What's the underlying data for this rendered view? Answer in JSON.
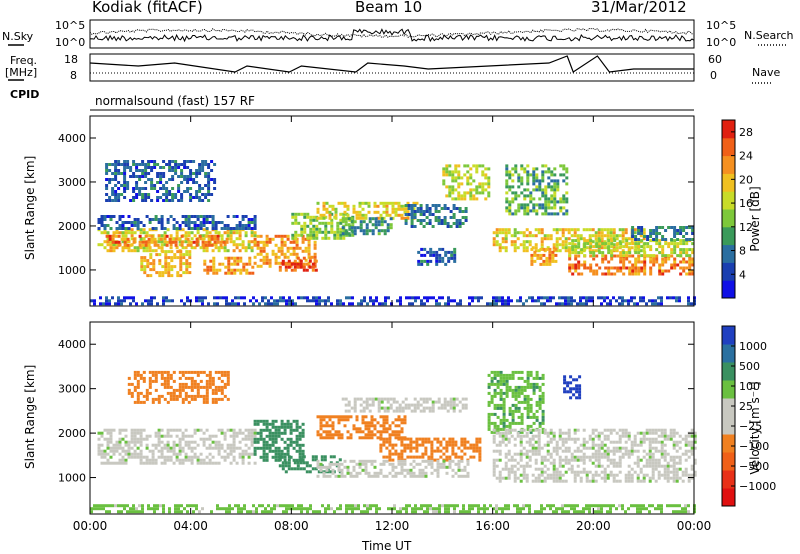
{
  "header": {
    "site": "Kodiak (fitACF)",
    "beam": "Beam 10",
    "date": "31/Mar/2012"
  },
  "summary": {
    "nsky_label": "N.Sky",
    "nsearch_label": "N.Search",
    "noise_ticks": [
      "10^5",
      "10^0"
    ],
    "freq_label": [
      "Freq.",
      "[MHz]"
    ],
    "freq_ticks": [
      "18",
      "8"
    ],
    "nave_label": "Nave",
    "nave_ticks": [
      "60",
      "0"
    ],
    "cpid_label": "CPID",
    "cpid_text": "normalsound (fast) 157 RF"
  },
  "chart_data": [
    {
      "type": "heatmap",
      "title": "",
      "xlabel": "Time UT",
      "ylabel": "Slant Range [km]",
      "xlim": [
        0,
        24
      ],
      "ylim": [
        180,
        4500
      ],
      "x_ticks": [
        "00:00",
        "04:00",
        "08:00",
        "12:00",
        "16:00",
        "20:00",
        "00:00"
      ],
      "y_ticks": [
        "1000",
        "2000",
        "3000",
        "4000"
      ],
      "colorbar": {
        "label": "Power [dB]",
        "ticks": [
          "4",
          "8",
          "12",
          "16",
          "20",
          "24",
          "28"
        ],
        "min": 0,
        "max": 30,
        "colors": [
          "#1010e6",
          "#1a3fb0",
          "#2a6ea0",
          "#3a9a5a",
          "#7dc83a",
          "#c8dc28",
          "#f0c020",
          "#f59020",
          "#f06018",
          "#e02010"
        ]
      },
      "bands": [
        {
          "t0": 0.3,
          "t1": 6.5,
          "r0": 1450,
          "r1": 1950,
          "value": 18
        },
        {
          "t0": 0.3,
          "t1": 6.5,
          "r0": 1950,
          "r1": 2250,
          "value": 6
        },
        {
          "t0": 0.5,
          "t1": 5.5,
          "r0": 1550,
          "r1": 1800,
          "value": 24
        },
        {
          "t0": 0.6,
          "t1": 5.0,
          "r0": 2600,
          "r1": 3500,
          "value": 6
        },
        {
          "t0": 2.0,
          "t1": 4.0,
          "r0": 900,
          "r1": 1450,
          "value": 20
        },
        {
          "t0": 4.5,
          "t1": 6.5,
          "r0": 900,
          "r1": 1300,
          "value": 22
        },
        {
          "t0": 6.5,
          "t1": 9.0,
          "r0": 1100,
          "r1": 1800,
          "value": 22
        },
        {
          "t0": 7.5,
          "t1": 9.0,
          "r0": 1000,
          "r1": 1300,
          "value": 26
        },
        {
          "t0": 8.0,
          "t1": 10.5,
          "r0": 1700,
          "r1": 2300,
          "value": 14
        },
        {
          "t0": 9.0,
          "t1": 13.0,
          "r0": 2150,
          "r1": 2550,
          "value": 18
        },
        {
          "t0": 10.0,
          "t1": 12.0,
          "r0": 1800,
          "r1": 2200,
          "value": 10
        },
        {
          "t0": 12.5,
          "t1": 15.0,
          "r0": 2000,
          "r1": 2500,
          "value": 8
        },
        {
          "t0": 13.0,
          "t1": 14.5,
          "r0": 1100,
          "r1": 1500,
          "value": 6
        },
        {
          "t0": 14.0,
          "t1": 15.8,
          "r0": 2600,
          "r1": 3400,
          "value": 16
        },
        {
          "t0": 16.0,
          "t1": 22.0,
          "r0": 1450,
          "r1": 1950,
          "value": 18
        },
        {
          "t0": 16.5,
          "t1": 19.0,
          "r0": 2300,
          "r1": 3400,
          "value": 12
        },
        {
          "t0": 17.5,
          "t1": 18.5,
          "r0": 1100,
          "r1": 1500,
          "value": 22
        },
        {
          "t0": 19.0,
          "t1": 24.0,
          "r0": 900,
          "r1": 1350,
          "value": 24
        },
        {
          "t0": 19.0,
          "t1": 24.0,
          "r0": 1350,
          "r1": 1700,
          "value": 16
        },
        {
          "t0": 21.5,
          "t1": 24.0,
          "r0": 1700,
          "r1": 2000,
          "value": 8
        },
        {
          "t0": 0.0,
          "t1": 24.0,
          "r0": 200,
          "r1": 400,
          "value": 4
        }
      ]
    },
    {
      "type": "heatmap",
      "title": "",
      "xlabel": "Time UT",
      "ylabel": "Slant Range [km]",
      "xlim": [
        0,
        24
      ],
      "ylim": [
        180,
        4500
      ],
      "x_ticks": [
        "00:00",
        "04:00",
        "08:00",
        "12:00",
        "16:00",
        "20:00",
        "00:00"
      ],
      "y_ticks": [
        "1000",
        "2000",
        "3000",
        "4000"
      ],
      "colorbar": {
        "label": "Velocity [m s⁻¹]",
        "ticks": [
          "1000",
          "500",
          "100",
          "25",
          "−25",
          "−100",
          "−500",
          "−1000"
        ],
        "colors": [
          "#2040c0",
          "#2a70a0",
          "#3a9060",
          "#6ac040",
          "#c8c8c0",
          "#c8c8c0",
          "#f08020",
          "#f06018",
          "#e83018",
          "#e01010"
        ]
      },
      "bands": [
        {
          "t0": 0.3,
          "t1": 6.5,
          "r0": 1300,
          "r1": 2100,
          "value": 0
        },
        {
          "t0": 1.5,
          "t1": 5.5,
          "r0": 2700,
          "r1": 3400,
          "value": -300
        },
        {
          "t0": 6.5,
          "t1": 8.5,
          "r0": 1400,
          "r1": 2300,
          "value": 150
        },
        {
          "t0": 7.5,
          "t1": 10.0,
          "r0": 1100,
          "r1": 1500,
          "value": 300
        },
        {
          "t0": 9.0,
          "t1": 12.5,
          "r0": 1900,
          "r1": 2400,
          "value": -300
        },
        {
          "t0": 11.5,
          "t1": 15.5,
          "r0": 1400,
          "r1": 1900,
          "value": -300
        },
        {
          "t0": 9.0,
          "t1": 15.0,
          "r0": 1000,
          "r1": 1400,
          "value": 0
        },
        {
          "t0": 10.0,
          "t1": 15.0,
          "r0": 2500,
          "r1": 2800,
          "value": 0
        },
        {
          "t0": 15.8,
          "t1": 18.0,
          "r0": 2000,
          "r1": 3400,
          "value": 80
        },
        {
          "t0": 16.0,
          "t1": 24.0,
          "r0": 900,
          "r1": 2100,
          "value": 0
        },
        {
          "t0": 18.8,
          "t1": 19.5,
          "r0": 2800,
          "r1": 3300,
          "value": 600
        },
        {
          "t0": 0.0,
          "t1": 24.0,
          "r0": 200,
          "r1": 400,
          "value": 50
        }
      ]
    }
  ]
}
